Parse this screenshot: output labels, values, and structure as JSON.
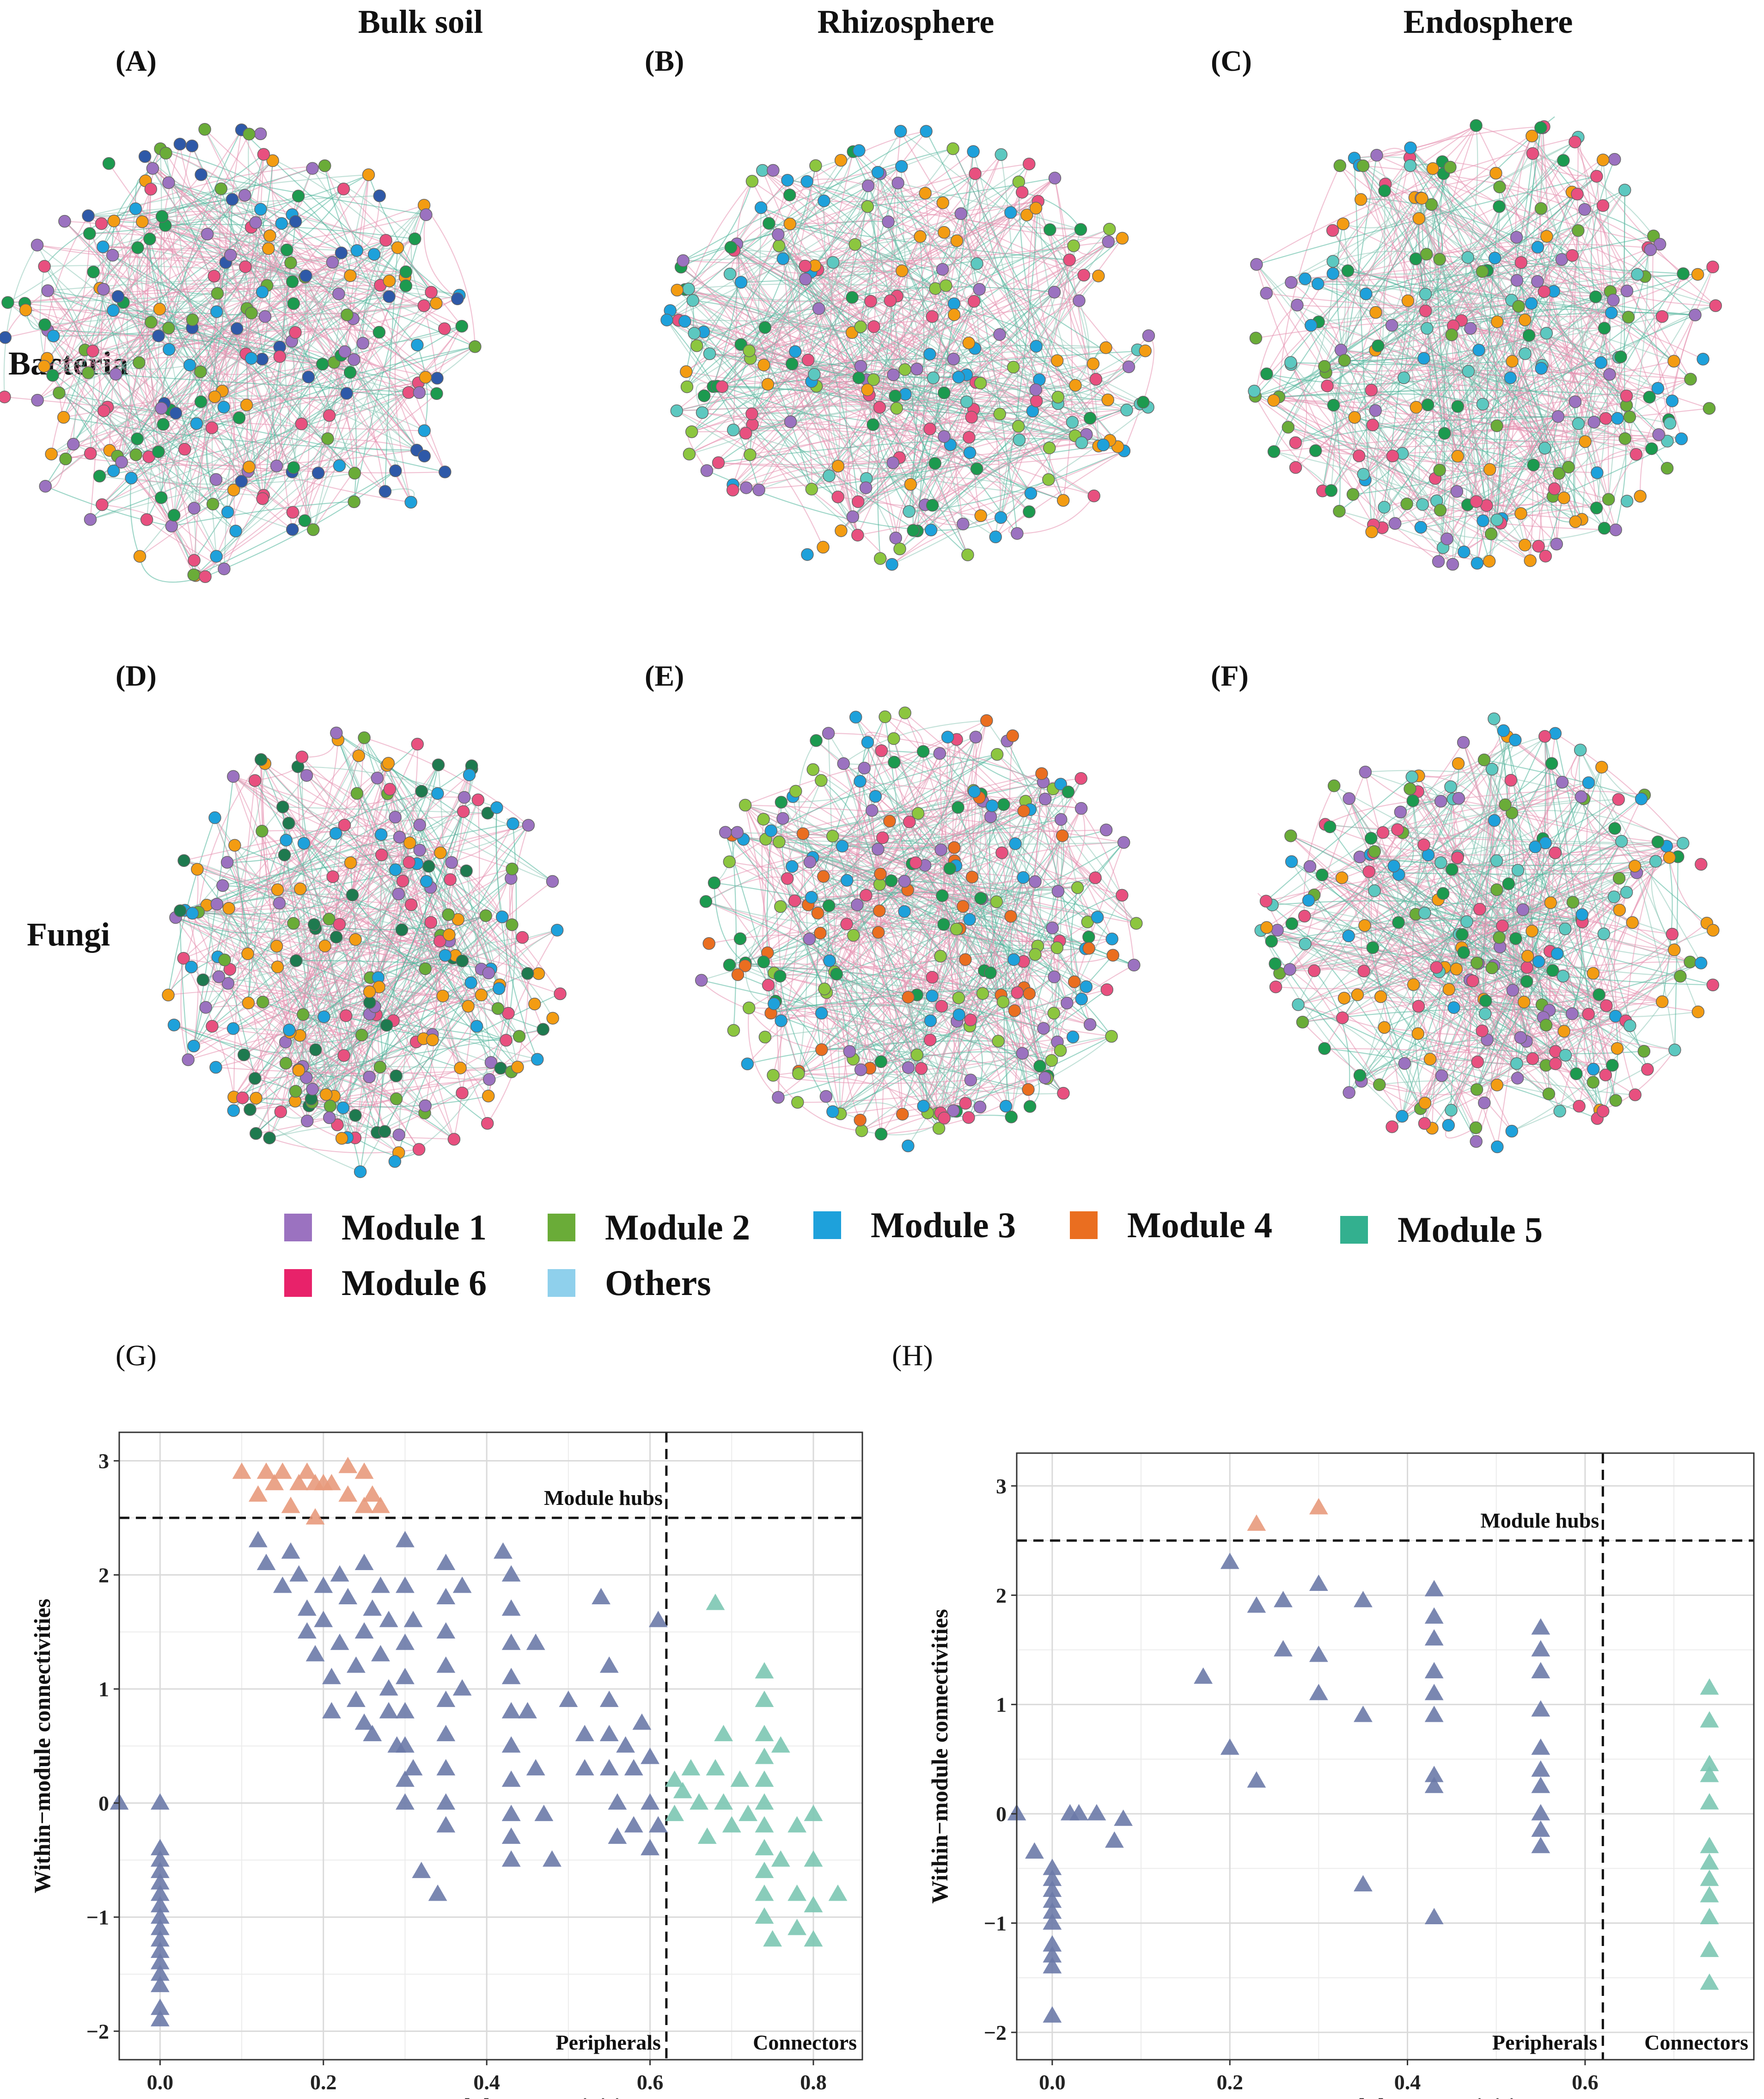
{
  "columns": [
    "Bulk soil",
    "Rhizosphere",
    "Endosphere"
  ],
  "rows": [
    "Bacteria",
    "Fungi"
  ],
  "panel_labels": [
    "(A)",
    "(B)",
    "(C)",
    "(D)",
    "(E)",
    "(F)",
    "(G)",
    "(H)"
  ],
  "legend": [
    {
      "label": "Module 1",
      "color": "#9b72c0"
    },
    {
      "label": "Module 2",
      "color": "#6aac38"
    },
    {
      "label": "Module 3",
      "color": "#1ea1db"
    },
    {
      "label": "Module 4",
      "color": "#ea6e20"
    },
    {
      "label": "Module 5",
      "color": "#33b08f"
    },
    {
      "label": "Module 6",
      "color": "#e8226a"
    },
    {
      "label": "Others",
      "color": "#8fd0ec"
    }
  ],
  "networks": [
    {
      "colors": [
        "#9b72c0",
        "#6aac38",
        "#1ea1db",
        "#f39c12",
        "#e8507f",
        "#2e59a8",
        "#1c9a4f"
      ]
    },
    {
      "colors": [
        "#9b72c0",
        "#8cc63f",
        "#1ea1db",
        "#f39c12",
        "#e8507f",
        "#1c9a4f",
        "#5cc8c0"
      ]
    },
    {
      "colors": [
        "#9b72c0",
        "#6aac38",
        "#1ea1db",
        "#f39c12",
        "#e8507f",
        "#1c9a4f",
        "#5cc8c0"
      ]
    },
    {
      "colors": [
        "#9b72c0",
        "#6aac38",
        "#1ea1db",
        "#f39c12",
        "#e8507f",
        "#1e7a4f"
      ]
    },
    {
      "colors": [
        "#9b72c0",
        "#8cc63f",
        "#1ea1db",
        "#ea6e20",
        "#e8507f",
        "#1c9a4f"
      ]
    },
    {
      "colors": [
        "#9b72c0",
        "#6aac38",
        "#1ea1db",
        "#f39c12",
        "#e8507f",
        "#1c9a4f",
        "#5cc8c0"
      ]
    }
  ],
  "chart_data": [
    {
      "type": "scatter",
      "id": "G",
      "xlabel": "Among−module connectivities",
      "ylabel": "Within−module connectivities",
      "xlim": [
        -0.05,
        0.86
      ],
      "ylim": [
        -2.25,
        3.25
      ],
      "xticks": [
        0.0,
        0.2,
        0.4,
        0.6,
        0.8
      ],
      "xtick_labels": [
        "0.0",
        "0.2",
        "0.4",
        "0.6",
        "0.8"
      ],
      "yticks": [
        -2,
        -1,
        0,
        1,
        2,
        3
      ],
      "ytick_labels": [
        "−2",
        "−1",
        "0",
        "1",
        "2",
        "3"
      ],
      "thresholds": {
        "x": 0.62,
        "y": 2.5
      },
      "region_labels": {
        "hubs": "Module hubs",
        "peripherals": "Peripherals",
        "connectors": "Connectors"
      },
      "series": [
        {
          "name": "Peripherals",
          "color": "#6b7aa8",
          "points": [
            [
              -0.05,
              0
            ],
            [
              0,
              0
            ],
            [
              0,
              -0.4
            ],
            [
              0,
              -0.5
            ],
            [
              0,
              -0.6
            ],
            [
              0,
              -0.7
            ],
            [
              0,
              -0.8
            ],
            [
              0,
              -0.9
            ],
            [
              0,
              -1.0
            ],
            [
              0,
              -1.1
            ],
            [
              0,
              -1.2
            ],
            [
              0,
              -1.3
            ],
            [
              0,
              -1.4
            ],
            [
              0,
              -1.5
            ],
            [
              0,
              -1.6
            ],
            [
              0,
              -1.8
            ],
            [
              0,
              -1.9
            ],
            [
              0.12,
              2.3
            ],
            [
              0.13,
              2.1
            ],
            [
              0.15,
              1.9
            ],
            [
              0.16,
              2.2
            ],
            [
              0.17,
              2.0
            ],
            [
              0.18,
              1.7
            ],
            [
              0.18,
              1.5
            ],
            [
              0.19,
              1.3
            ],
            [
              0.2,
              1.9
            ],
            [
              0.2,
              1.6
            ],
            [
              0.21,
              1.1
            ],
            [
              0.21,
              0.8
            ],
            [
              0.22,
              2.0
            ],
            [
              0.22,
              1.4
            ],
            [
              0.23,
              1.8
            ],
            [
              0.24,
              1.2
            ],
            [
              0.24,
              0.9
            ],
            [
              0.25,
              2.1
            ],
            [
              0.25,
              1.5
            ],
            [
              0.25,
              0.7
            ],
            [
              0.26,
              1.7
            ],
            [
              0.26,
              0.6
            ],
            [
              0.27,
              1.9
            ],
            [
              0.27,
              1.3
            ],
            [
              0.28,
              1.6
            ],
            [
              0.28,
              1.0
            ],
            [
              0.28,
              0.8
            ],
            [
              0.29,
              0.5
            ],
            [
              0.3,
              2.3
            ],
            [
              0.3,
              1.9
            ],
            [
              0.3,
              1.4
            ],
            [
              0.3,
              1.1
            ],
            [
              0.3,
              0.8
            ],
            [
              0.3,
              0.5
            ],
            [
              0.3,
              0.2
            ],
            [
              0.3,
              0.0
            ],
            [
              0.31,
              1.6
            ],
            [
              0.31,
              0.3
            ],
            [
              0.32,
              -0.6
            ],
            [
              0.35,
              2.1
            ],
            [
              0.35,
              1.8
            ],
            [
              0.35,
              1.5
            ],
            [
              0.35,
              1.2
            ],
            [
              0.35,
              0.9
            ],
            [
              0.35,
              0.6
            ],
            [
              0.35,
              0.3
            ],
            [
              0.35,
              0.0
            ],
            [
              0.35,
              -0.2
            ],
            [
              0.34,
              -0.8
            ],
            [
              0.37,
              1.9
            ],
            [
              0.37,
              1.0
            ],
            [
              0.42,
              2.2
            ],
            [
              0.43,
              2.0
            ],
            [
              0.43,
              1.7
            ],
            [
              0.43,
              1.4
            ],
            [
              0.43,
              1.1
            ],
            [
              0.43,
              0.8
            ],
            [
              0.43,
              0.5
            ],
            [
              0.43,
              0.2
            ],
            [
              0.43,
              -0.1
            ],
            [
              0.43,
              -0.3
            ],
            [
              0.43,
              -0.5
            ],
            [
              0.45,
              0.8
            ],
            [
              0.46,
              1.4
            ],
            [
              0.46,
              0.3
            ],
            [
              0.47,
              -0.1
            ],
            [
              0.48,
              -0.5
            ],
            [
              0.5,
              0.9
            ],
            [
              0.52,
              0.6
            ],
            [
              0.52,
              0.3
            ],
            [
              0.54,
              1.8
            ],
            [
              0.55,
              1.2
            ],
            [
              0.55,
              0.9
            ],
            [
              0.55,
              0.6
            ],
            [
              0.55,
              0.3
            ],
            [
              0.56,
              0.0
            ],
            [
              0.56,
              -0.3
            ],
            [
              0.57,
              0.5
            ],
            [
              0.58,
              0.3
            ],
            [
              0.58,
              -0.2
            ],
            [
              0.59,
              0.7
            ],
            [
              0.6,
              0.4
            ],
            [
              0.6,
              0.0
            ],
            [
              0.6,
              -0.4
            ],
            [
              0.61,
              1.6
            ],
            [
              0.61,
              -0.2
            ]
          ]
        },
        {
          "name": "Module hubs",
          "color": "#e89a7c",
          "points": [
            [
              0.1,
              2.9
            ],
            [
              0.12,
              2.7
            ],
            [
              0.13,
              2.9
            ],
            [
              0.14,
              2.8
            ],
            [
              0.15,
              2.9
            ],
            [
              0.16,
              2.6
            ],
            [
              0.17,
              2.8
            ],
            [
              0.18,
              2.9
            ],
            [
              0.19,
              2.8
            ],
            [
              0.19,
              2.5
            ],
            [
              0.2,
              2.8
            ],
            [
              0.21,
              2.8
            ],
            [
              0.23,
              2.7
            ],
            [
              0.23,
              2.95
            ],
            [
              0.25,
              2.6
            ],
            [
              0.25,
              2.9
            ],
            [
              0.26,
              2.7
            ],
            [
              0.27,
              2.6
            ]
          ]
        },
        {
          "name": "Connectors",
          "color": "#7cc7b2",
          "points": [
            [
              0.63,
              0.2
            ],
            [
              0.63,
              -0.1
            ],
            [
              0.64,
              0.1
            ],
            [
              0.65,
              0.3
            ],
            [
              0.66,
              0.0
            ],
            [
              0.67,
              -0.3
            ],
            [
              0.68,
              0.3
            ],
            [
              0.68,
              1.75
            ],
            [
              0.69,
              0.6
            ],
            [
              0.69,
              0.0
            ],
            [
              0.7,
              -0.2
            ],
            [
              0.71,
              0.2
            ],
            [
              0.72,
              -0.1
            ],
            [
              0.74,
              1.15
            ],
            [
              0.74,
              0.9
            ],
            [
              0.74,
              0.6
            ],
            [
              0.74,
              0.4
            ],
            [
              0.74,
              0.2
            ],
            [
              0.74,
              0.0
            ],
            [
              0.74,
              -0.2
            ],
            [
              0.74,
              -0.4
            ],
            [
              0.74,
              -0.6
            ],
            [
              0.74,
              -0.8
            ],
            [
              0.74,
              -1.0
            ],
            [
              0.75,
              -1.2
            ],
            [
              0.76,
              0.5
            ],
            [
              0.76,
              -0.5
            ],
            [
              0.78,
              -0.2
            ],
            [
              0.78,
              -0.8
            ],
            [
              0.78,
              -1.1
            ],
            [
              0.8,
              -0.1
            ],
            [
              0.8,
              -0.5
            ],
            [
              0.8,
              -0.9
            ],
            [
              0.8,
              -1.2
            ],
            [
              0.83,
              -0.8
            ]
          ]
        }
      ]
    },
    {
      "type": "scatter",
      "id": "H",
      "xlabel": "Among−module connectivities",
      "ylabel": "Within−module connectivities",
      "xlim": [
        -0.04,
        0.79
      ],
      "ylim": [
        -2.25,
        3.3
      ],
      "xticks": [
        0.0,
        0.2,
        0.4,
        0.6
      ],
      "xtick_labels": [
        "0.0",
        "0.2",
        "0.4",
        "0.6"
      ],
      "yticks": [
        -2,
        -1,
        0,
        1,
        2,
        3
      ],
      "ytick_labels": [
        "−2",
        "−1",
        "0",
        "1",
        "2",
        "3"
      ],
      "thresholds": {
        "x": 0.62,
        "y": 2.5
      },
      "region_labels": {
        "hubs": "Module hubs",
        "peripherals": "Peripherals",
        "connectors": "Connectors"
      },
      "series": [
        {
          "name": "Peripherals",
          "color": "#6b7aa8",
          "points": [
            [
              -0.04,
              0
            ],
            [
              -0.02,
              -0.35
            ],
            [
              0,
              -0.5
            ],
            [
              0,
              -0.6
            ],
            [
              0,
              -0.7
            ],
            [
              0,
              -0.8
            ],
            [
              0,
              -0.9
            ],
            [
              0,
              -1.0
            ],
            [
              0,
              -1.2
            ],
            [
              0,
              -1.3
            ],
            [
              0,
              -1.4
            ],
            [
              0,
              -1.85
            ],
            [
              0.02,
              0
            ],
            [
              0.03,
              0
            ],
            [
              0.05,
              0
            ],
            [
              0.07,
              -0.25
            ],
            [
              0.08,
              -0.05
            ],
            [
              0.17,
              1.25
            ],
            [
              0.2,
              0.6
            ],
            [
              0.2,
              2.3
            ],
            [
              0.23,
              1.9
            ],
            [
              0.23,
              0.3
            ],
            [
              0.26,
              1.95
            ],
            [
              0.26,
              1.5
            ],
            [
              0.3,
              2.1
            ],
            [
              0.3,
              1.45
            ],
            [
              0.3,
              1.1
            ],
            [
              0.35,
              1.95
            ],
            [
              0.35,
              0.9
            ],
            [
              0.35,
              -0.65
            ],
            [
              0.43,
              2.05
            ],
            [
              0.43,
              1.8
            ],
            [
              0.43,
              1.6
            ],
            [
              0.43,
              1.3
            ],
            [
              0.43,
              1.1
            ],
            [
              0.43,
              0.9
            ],
            [
              0.43,
              0.35
            ],
            [
              0.43,
              0.25
            ],
            [
              0.43,
              -0.95
            ],
            [
              0.55,
              1.7
            ],
            [
              0.55,
              1.5
            ],
            [
              0.55,
              1.3
            ],
            [
              0.55,
              0.95
            ],
            [
              0.55,
              0.6
            ],
            [
              0.55,
              0.4
            ],
            [
              0.55,
              0.25
            ],
            [
              0.55,
              0.0
            ],
            [
              0.55,
              -0.15
            ],
            [
              0.55,
              -0.3
            ]
          ]
        },
        {
          "name": "Module hubs",
          "color": "#e89a7c",
          "points": [
            [
              0.23,
              2.65
            ],
            [
              0.3,
              2.8
            ]
          ]
        },
        {
          "name": "Connectors",
          "color": "#7cc7b2",
          "points": [
            [
              0.74,
              1.15
            ],
            [
              0.74,
              0.85
            ],
            [
              0.74,
              0.45
            ],
            [
              0.74,
              0.35
            ],
            [
              0.74,
              0.1
            ],
            [
              0.74,
              -0.3
            ],
            [
              0.74,
              -0.45
            ],
            [
              0.74,
              -0.6
            ],
            [
              0.74,
              -0.75
            ],
            [
              0.74,
              -0.95
            ],
            [
              0.74,
              -1.25
            ],
            [
              0.74,
              -1.55
            ]
          ]
        }
      ]
    }
  ]
}
